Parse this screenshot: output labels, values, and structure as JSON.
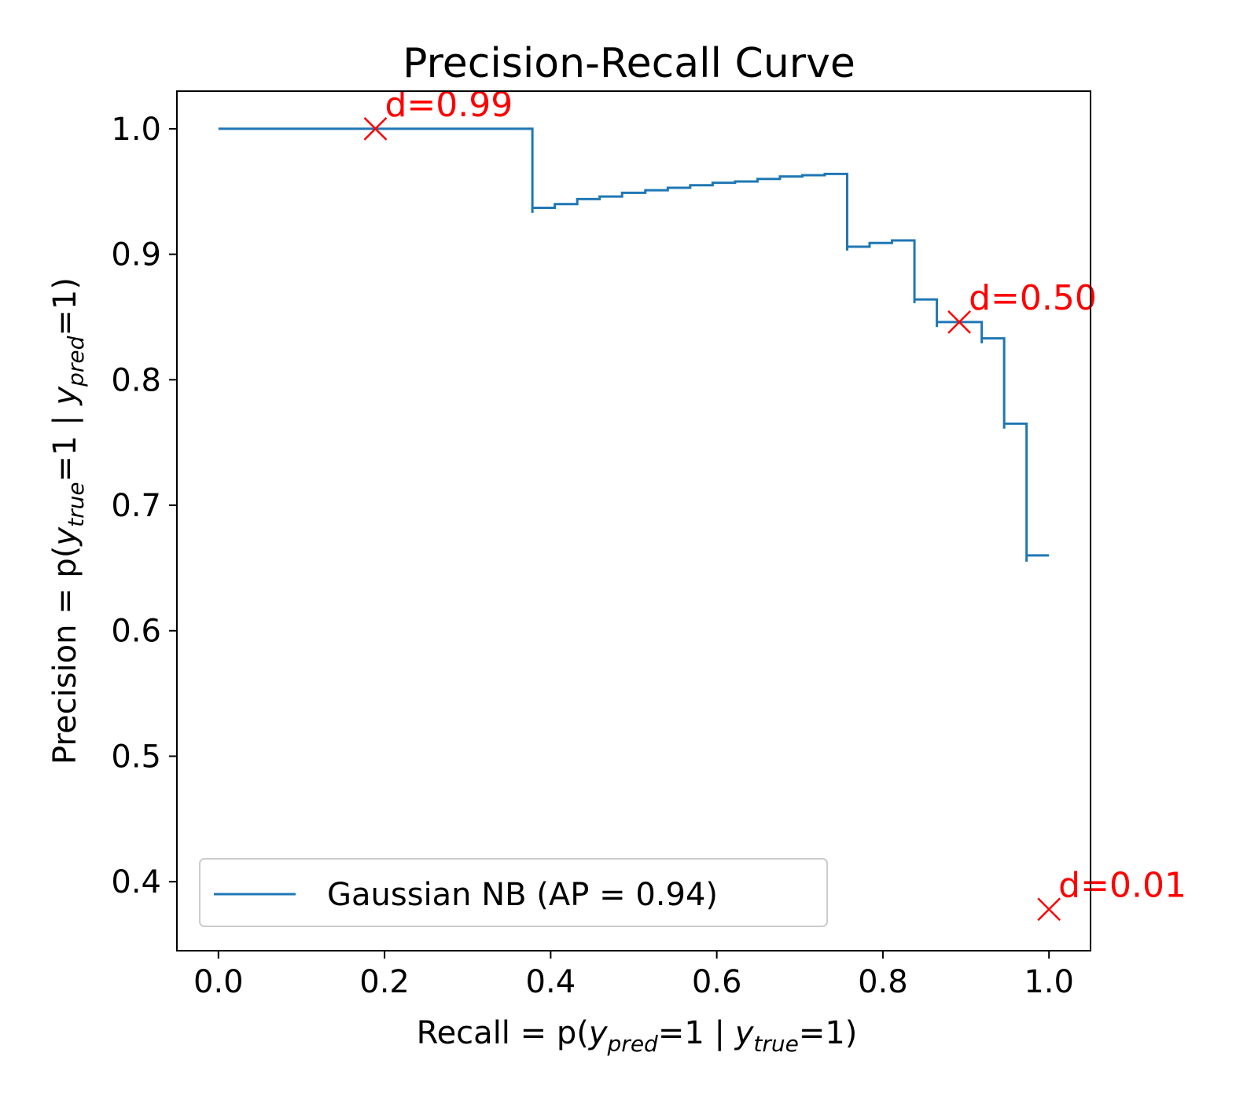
{
  "chart_data": {
    "type": "line",
    "title": "Precision-Recall Curve",
    "xlabel": {
      "prefix": "Recall = p(",
      "v1": "y",
      "s1": "pred",
      "mid": "=1 | ",
      "v2": "y",
      "s2": "true",
      "suffix": "=1)"
    },
    "ylabel": {
      "prefix": "Precision = p(",
      "v1": "y",
      "s1": "true",
      "mid": "=1 | ",
      "v2": "y",
      "s2": "pred",
      "suffix": "=1)"
    },
    "xlim": [
      -0.05,
      1.05
    ],
    "ylim": [
      0.345,
      1.03
    ],
    "xticks": [
      {
        "value": 0.0,
        "label": "0.0"
      },
      {
        "value": 0.2,
        "label": "0.2"
      },
      {
        "value": 0.4,
        "label": "0.4"
      },
      {
        "value": 0.6,
        "label": "0.6"
      },
      {
        "value": 0.8,
        "label": "0.8"
      },
      {
        "value": 1.0,
        "label": "1.0"
      }
    ],
    "yticks": [
      {
        "value": 0.4,
        "label": "0.4"
      },
      {
        "value": 0.5,
        "label": "0.5"
      },
      {
        "value": 0.6,
        "label": "0.6"
      },
      {
        "value": 0.7,
        "label": "0.7"
      },
      {
        "value": 0.8,
        "label": "0.8"
      },
      {
        "value": 0.9,
        "label": "0.9"
      },
      {
        "value": 1.0,
        "label": "1.0"
      }
    ],
    "grid": false,
    "legend": {
      "position": "lower-left",
      "entries": [
        {
          "label": "Gaussian NB (AP = 0.94)",
          "color": "#1f77b4"
        }
      ]
    },
    "series": [
      {
        "name": "Gaussian NB (AP = 0.94)",
        "color": "#1f77b4",
        "drawstyle": "steps-post",
        "points": [
          [
            0.0,
            1.0
          ],
          [
            0.378,
            0.933
          ],
          [
            0.378,
            0.937
          ],
          [
            0.405,
            0.94
          ],
          [
            0.432,
            0.944
          ],
          [
            0.459,
            0.946
          ],
          [
            0.486,
            0.949
          ],
          [
            0.514,
            0.951
          ],
          [
            0.541,
            0.953
          ],
          [
            0.568,
            0.955
          ],
          [
            0.595,
            0.957
          ],
          [
            0.622,
            0.958
          ],
          [
            0.649,
            0.96
          ],
          [
            0.676,
            0.962
          ],
          [
            0.703,
            0.963
          ],
          [
            0.73,
            0.964
          ],
          [
            0.757,
            0.903
          ],
          [
            0.757,
            0.906
          ],
          [
            0.784,
            0.909
          ],
          [
            0.811,
            0.911
          ],
          [
            0.838,
            0.861
          ],
          [
            0.838,
            0.864
          ],
          [
            0.865,
            0.842
          ],
          [
            0.865,
            0.846
          ],
          [
            0.892,
            0.846
          ],
          [
            0.919,
            0.829
          ],
          [
            0.919,
            0.833
          ],
          [
            0.946,
            0.761
          ],
          [
            0.946,
            0.765
          ],
          [
            0.973,
            0.655
          ],
          [
            0.973,
            0.66
          ],
          [
            1.0,
            0.66
          ]
        ]
      }
    ],
    "annotations": [
      {
        "label": "d=0.99",
        "x": 0.189,
        "y": 1.0,
        "marker": "x",
        "color": "#ff0000"
      },
      {
        "label": "d=0.50",
        "x": 0.892,
        "y": 0.846,
        "marker": "x",
        "color": "#ff0000"
      },
      {
        "label": "d=0.01",
        "x": 1.0,
        "y": 0.378,
        "marker": "x",
        "color": "#ff0000"
      }
    ]
  }
}
